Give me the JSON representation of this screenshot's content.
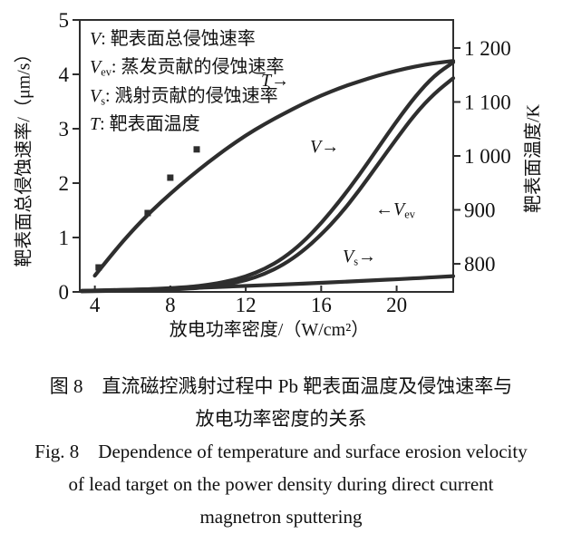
{
  "figure": {
    "caption_cn_line1": "图 8　直流磁控溅射过程中 Pb 靶表面温度及侵蚀速率与",
    "caption_cn_line2": "放电功率密度的关系",
    "caption_en_line1": "Fig. 8　Dependence of temperature and surface erosion velocity",
    "caption_en_line2": "of lead target on the power density during direct current",
    "caption_en_line3": "magnetron sputtering"
  },
  "chart_data": {
    "type": "line",
    "xlabel": "放电功率密度/（W/cm²）",
    "ylabel_left": "靶表面总侵蚀速率/（μm/s）",
    "ylabel_right": "靶表面温度/K",
    "xlim": [
      3.2,
      23.0
    ],
    "ylim_left": [
      0,
      5
    ],
    "ylim_right": [
      748,
      1252
    ],
    "x_ticks": [
      4,
      8,
      12,
      16,
      20
    ],
    "y_ticks_left": [
      0,
      1,
      2,
      3,
      4,
      5
    ],
    "y_ticks_right": [
      800,
      900,
      1000,
      1100,
      1200
    ],
    "y_ticks_right_labels": [
      "800",
      "900",
      "1 000",
      "1 100",
      "1 200"
    ],
    "grid": false,
    "curve_color": "#2e2e2e",
    "text_color": "#111111",
    "legend": [
      {
        "sym": "V",
        "sub": "",
        "rest": ": 靶表面总侵蚀速率"
      },
      {
        "sym": "V",
        "sub": "ev",
        "rest": ": 蒸发贡献的侵蚀速率"
      },
      {
        "sym": "V",
        "sub": "s",
        "rest": ": 溅射贡献的侵蚀速率"
      },
      {
        "sym": "T",
        "sub": "",
        "rest": ": 靶表面温度"
      }
    ],
    "curve_labels": [
      {
        "pre": "",
        "sym": "T",
        "sub": "",
        "post": "→"
      },
      {
        "pre": "",
        "sym": "V",
        "sub": "",
        "post": "→"
      },
      {
        "pre": "←",
        "sym": "V",
        "sub": "ev",
        "post": ""
      },
      {
        "pre": "",
        "sym": "V",
        "sub": "s",
        "post": "→"
      }
    ],
    "series": [
      {
        "name": "T",
        "axis": "right",
        "points": [
          [
            4,
            778
          ],
          [
            5,
            822
          ],
          [
            6,
            862
          ],
          [
            7,
            898
          ],
          [
            8,
            930
          ],
          [
            9,
            960
          ],
          [
            10,
            988
          ],
          [
            11,
            1014
          ],
          [
            12,
            1038
          ],
          [
            13,
            1059
          ],
          [
            14,
            1078
          ],
          [
            15,
            1096
          ],
          [
            16,
            1112
          ],
          [
            17,
            1126
          ],
          [
            18,
            1138
          ],
          [
            19,
            1149
          ],
          [
            20,
            1158
          ],
          [
            21,
            1166
          ],
          [
            22,
            1172
          ],
          [
            23,
            1176
          ]
        ]
      },
      {
        "name": "V",
        "axis": "left",
        "points": [
          [
            3.3,
            0.02
          ],
          [
            5,
            0.03
          ],
          [
            7,
            0.05
          ],
          [
            9,
            0.09
          ],
          [
            10,
            0.13
          ],
          [
            11,
            0.19
          ],
          [
            12,
            0.28
          ],
          [
            13,
            0.42
          ],
          [
            14,
            0.62
          ],
          [
            15,
            0.9
          ],
          [
            16,
            1.26
          ],
          [
            17,
            1.68
          ],
          [
            18,
            2.14
          ],
          [
            19,
            2.64
          ],
          [
            20,
            3.14
          ],
          [
            21,
            3.6
          ],
          [
            22,
            3.98
          ],
          [
            23,
            4.22
          ]
        ]
      },
      {
        "name": "Vev",
        "axis": "left",
        "points": [
          [
            3.3,
            0.01
          ],
          [
            5,
            0.02
          ],
          [
            7,
            0.03
          ],
          [
            9,
            0.06
          ],
          [
            10,
            0.09
          ],
          [
            11,
            0.14
          ],
          [
            12,
            0.21
          ],
          [
            13,
            0.33
          ],
          [
            14,
            0.5
          ],
          [
            15,
            0.74
          ],
          [
            16,
            1.05
          ],
          [
            17,
            1.42
          ],
          [
            18,
            1.86
          ],
          [
            19,
            2.34
          ],
          [
            20,
            2.82
          ],
          [
            21,
            3.28
          ],
          [
            22,
            3.65
          ],
          [
            23,
            3.93
          ]
        ]
      },
      {
        "name": "Vs",
        "axis": "left",
        "points": [
          [
            3.3,
            0.02
          ],
          [
            6,
            0.04
          ],
          [
            9,
            0.07
          ],
          [
            12,
            0.11
          ],
          [
            15,
            0.15
          ],
          [
            18,
            0.2
          ],
          [
            21,
            0.25
          ],
          [
            23,
            0.29
          ]
        ]
      }
    ],
    "scatter": {
      "name": "measured-points",
      "marker": "square",
      "axis": "left",
      "points": [
        [
          4.2,
          0.45
        ],
        [
          6.8,
          1.45
        ],
        [
          8.0,
          2.1
        ],
        [
          9.4,
          2.62
        ]
      ]
    }
  }
}
